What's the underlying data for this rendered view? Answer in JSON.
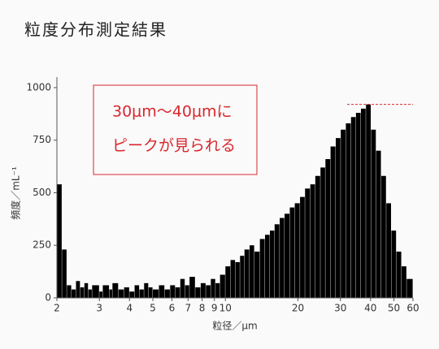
{
  "chart_data": {
    "type": "histogram",
    "title": "粒度分布測定結果",
    "xlabel": "粒径／μm",
    "ylabel": "頻度／mL⁻¹",
    "xscale": "log",
    "color": "#000000",
    "bins": [
      2,
      2.1,
      2.2,
      2.3,
      2.4,
      2.5,
      2.6,
      2.7,
      2.8,
      3.0,
      3.1,
      3.3,
      3.4,
      3.6,
      3.8,
      4.0,
      4.2,
      4.4,
      4.6,
      4.8,
      5.0,
      5.3,
      5.6,
      5.9,
      6.2,
      6.5,
      6.8,
      7.1,
      7.5,
      7.9,
      8.3,
      8.7,
      9.1,
      9.5,
      10,
      10.5,
      11,
      11.5,
      12,
      12.6,
      13.2,
      13.9,
      14.6,
      15.3,
      16,
      16.8,
      17.6,
      18.5,
      19.4,
      20.4,
      21.4,
      22.5,
      23.6,
      24.8,
      26,
      27.3,
      28.7,
      30.1,
      31.6,
      33.2,
      34.8,
      36.5,
      38.3,
      40.2,
      42.2,
      44.3,
      46.5,
      48.8,
      51.2,
      53.8,
      56.5,
      60
    ],
    "values": [
      540,
      230,
      60,
      40,
      80,
      50,
      70,
      40,
      60,
      30,
      60,
      40,
      70,
      40,
      50,
      30,
      60,
      40,
      70,
      50,
      40,
      60,
      40,
      60,
      50,
      90,
      60,
      100,
      50,
      70,
      60,
      90,
      70,
      110,
      150,
      180,
      170,
      200,
      230,
      250,
      220,
      280,
      300,
      320,
      350,
      380,
      400,
      430,
      450,
      480,
      520,
      540,
      580,
      620,
      660,
      720,
      760,
      800,
      830,
      860,
      880,
      900,
      920,
      800,
      700,
      580,
      450,
      320,
      220,
      150,
      90
    ],
    "xlim": [
      2,
      60
    ],
    "ylim": [
      0,
      1050
    ],
    "xticks": [
      2,
      3,
      4,
      5,
      6,
      7,
      8,
      9,
      10,
      20,
      30,
      40,
      50,
      60
    ],
    "yticks": [
      0,
      250,
      500,
      750,
      1000
    ],
    "annotation": {
      "lines": [
        "30μm〜40μmに",
        "ピークが見られる"
      ],
      "y": 920,
      "x": [
        32,
        60
      ]
    }
  }
}
